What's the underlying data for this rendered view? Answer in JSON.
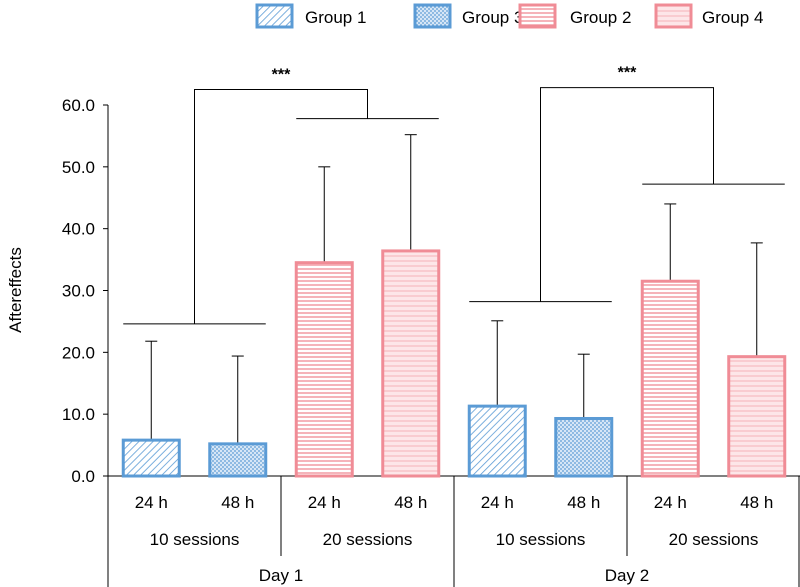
{
  "chart_data": {
    "type": "bar",
    "ylabel": "Aftereffects",
    "ylim": [
      0,
      60
    ],
    "yticks": [
      "0.0",
      "10.0",
      "20.0",
      "30.0",
      "40.0",
      "50.0",
      "60.0"
    ],
    "bars": [
      {
        "day": "Day 1",
        "sessions": "10 sessions",
        "time": "24 h",
        "group": "Group 1",
        "value": 5.8,
        "error": 16.0
      },
      {
        "day": "Day 1",
        "sessions": "10 sessions",
        "time": "48 h",
        "group": "Group 3",
        "value": 5.2,
        "error": 14.2
      },
      {
        "day": "Day 1",
        "sessions": "20 sessions",
        "time": "24 h",
        "group": "Group 2",
        "value": 34.5,
        "error": 15.5
      },
      {
        "day": "Day 1",
        "sessions": "20 sessions",
        "time": "48 h",
        "group": "Group 4",
        "value": 36.4,
        "error": 18.8
      },
      {
        "day": "Day 2",
        "sessions": "10 sessions",
        "time": "24 h",
        "group": "Group 1",
        "value": 11.3,
        "error": 13.8
      },
      {
        "day": "Day 2",
        "sessions": "10 sessions",
        "time": "48 h",
        "group": "Group 3",
        "value": 9.3,
        "error": 10.4
      },
      {
        "day": "Day 2",
        "sessions": "20 sessions",
        "time": "24 h",
        "group": "Group 2",
        "value": 31.5,
        "error": 12.5
      },
      {
        "day": "Day 2",
        "sessions": "20 sessions",
        "time": "48 h",
        "group": "Group 4",
        "value": 19.3,
        "error": 18.4
      }
    ],
    "legend": [
      {
        "label": "Group 1",
        "pattern": "diagonal",
        "color": "#5b9bd5"
      },
      {
        "label": "Group 3",
        "pattern": "dots",
        "color": "#5b9bd5"
      },
      {
        "label": "Group 2",
        "pattern": "horizontal",
        "color": "#f08c96"
      },
      {
        "label": "Group 4",
        "pattern": "light-horizontal",
        "color": "#f08c96"
      }
    ],
    "significance": [
      {
        "day": "Day 1",
        "label": "***",
        "left_bracket_y": 24.6,
        "right_bracket_y": 57.8,
        "top_y": 62.5
      },
      {
        "day": "Day 2",
        "label": "***",
        "left_bracket_y": 28.2,
        "right_bracket_y": 47.2,
        "top_y": 62.8
      }
    ],
    "days": [
      "Day 1",
      "Day 2"
    ],
    "session_labels": [
      "10 sessions",
      "20 sessions"
    ],
    "time_labels": [
      "24 h",
      "48 h"
    ]
  },
  "colors": {
    "blue": "#5b9bd5",
    "blue_fill": "#dce9f6",
    "pink": "#f08c96",
    "pink_fill": "#fde2e4"
  }
}
